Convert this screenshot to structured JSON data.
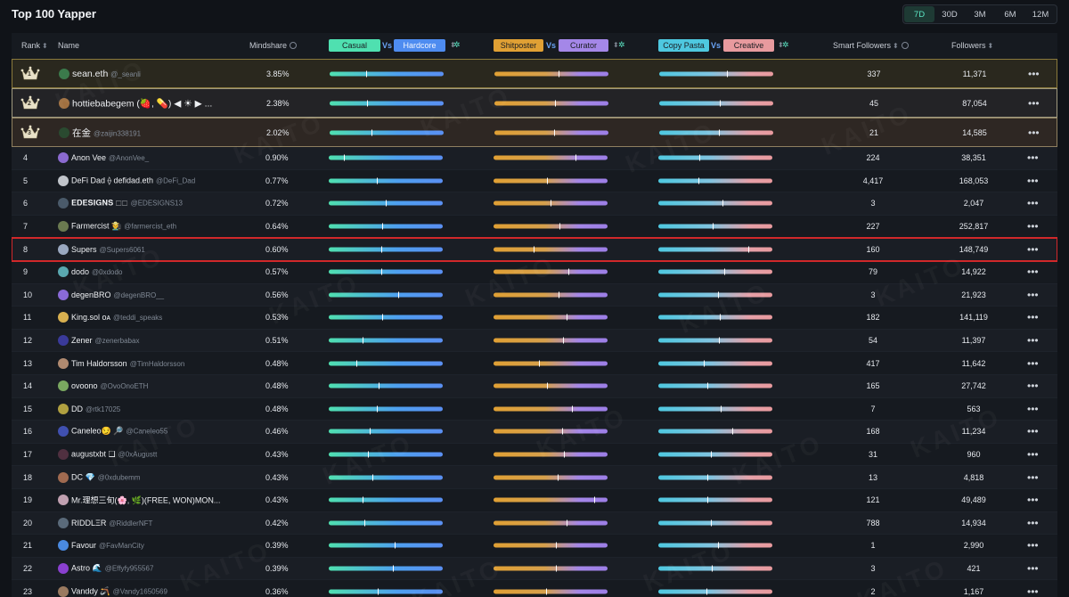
{
  "page": {
    "title": "Top 100 Yapper"
  },
  "range_tabs": [
    {
      "label": "7D",
      "active": true
    },
    {
      "label": "30D",
      "active": false
    },
    {
      "label": "3M",
      "active": false
    },
    {
      "label": "6M",
      "active": false
    },
    {
      "label": "12M",
      "active": false
    }
  ],
  "header": {
    "rank": "Rank",
    "name": "Name",
    "mindshare": "Mindshare",
    "casual": "Casual",
    "vs": "Vs",
    "hardcore": "Hardcore",
    "shitposter": "Shitposter",
    "curator": "Curator",
    "copy_pasta": "Copy Pasta",
    "creative": "Creative",
    "smart_followers": "Smart Followers",
    "followers": "Followers"
  },
  "watermark": "KAITO",
  "rows": [
    {
      "rank": "1",
      "crown": true,
      "name": "sean.eth",
      "handle": "@_seanli",
      "mindshare": "3.85%",
      "a": 0.32,
      "b": 0.56,
      "c": 0.59,
      "smart": "337",
      "followers": "11,371",
      "avatar": "#3b7a4b"
    },
    {
      "rank": "2",
      "crown": true,
      "name": "hottiebabegem (🍓, 💊) ◀ ☀ ▶ ...",
      "handle": "",
      "mindshare": "2.38%",
      "a": 0.33,
      "b": 0.53,
      "c": 0.53,
      "smart": "45",
      "followers": "87,054",
      "avatar": "#a07040"
    },
    {
      "rank": "3",
      "crown": true,
      "name": "在金",
      "handle": "@zaijin338191",
      "mindshare": "2.02%",
      "a": 0.37,
      "b": 0.52,
      "c": 0.52,
      "smart": "21",
      "followers": "14,585",
      "avatar": "#2a4a30"
    },
    {
      "rank": "4",
      "name": "Anon Vee",
      "handle": "@AnonVee_",
      "mindshare": "0.90%",
      "a": 0.13,
      "b": 0.72,
      "c": 0.36,
      "smart": "224",
      "followers": "38,351",
      "avatar": "#8b6ad0"
    },
    {
      "rank": "5",
      "name": "DeFi Dad ⟠ defidad.eth",
      "handle": "@DeFi_Dad",
      "mindshare": "0.77%",
      "a": 0.42,
      "b": 0.47,
      "c": 0.35,
      "smart": "4,417",
      "followers": "168,053",
      "avatar": "#c0c4ca"
    },
    {
      "rank": "6",
      "name": "𝐄𝐃𝐄𝐒𝐈𝐆𝐍𝐒 ⬚⬚",
      "handle": "@EDESIGNS13",
      "mindshare": "0.72%",
      "a": 0.5,
      "b": 0.5,
      "c": 0.56,
      "smart": "3",
      "followers": "2,047",
      "avatar": "#4a5a6a"
    },
    {
      "rank": "7",
      "name": "Farmercist 🧑‍🌾",
      "handle": "@farmercist_eth",
      "mindshare": "0.64%",
      "a": 0.47,
      "b": 0.58,
      "c": 0.48,
      "smart": "227",
      "followers": "252,817",
      "avatar": "#6a7a50"
    },
    {
      "rank": "8",
      "name": "Supers",
      "handle": "@Supers6061",
      "mindshare": "0.60%",
      "a": 0.46,
      "b": 0.35,
      "c": 0.79,
      "smart": "160",
      "followers": "148,749",
      "avatar": "#9aa8c0",
      "highlight": true
    },
    {
      "rank": "9",
      "name": "dodo",
      "handle": "@0xdodo",
      "mindshare": "0.57%",
      "a": 0.46,
      "b": 0.66,
      "c": 0.58,
      "smart": "79",
      "followers": "14,922",
      "avatar": "#5aa8b0"
    },
    {
      "rank": "10",
      "name": "degenBRO",
      "handle": "@degenBRO__",
      "mindshare": "0.56%",
      "a": 0.61,
      "b": 0.57,
      "c": 0.52,
      "smart": "3",
      "followers": "21,923",
      "avatar": "#8a6ad8"
    },
    {
      "rank": "11",
      "name": "King.sol ᴏᴀ",
      "handle": "@teddi_speaks",
      "mindshare": "0.53%",
      "a": 0.47,
      "b": 0.64,
      "c": 0.54,
      "smart": "182",
      "followers": "141,119",
      "avatar": "#d8b050"
    },
    {
      "rank": "12",
      "name": "Zener",
      "handle": "@zenerbabax",
      "mindshare": "0.51%",
      "a": 0.3,
      "b": 0.61,
      "c": 0.53,
      "smart": "54",
      "followers": "11,397",
      "avatar": "#3a3a9a"
    },
    {
      "rank": "13",
      "name": "Tim Haldorsson",
      "handle": "@TimHaldorsson",
      "mindshare": "0.48%",
      "a": 0.24,
      "b": 0.4,
      "c": 0.4,
      "smart": "417",
      "followers": "11,642",
      "avatar": "#b08a70"
    },
    {
      "rank": "14",
      "name": "ovoono",
      "handle": "@OvoOnoETH",
      "mindshare": "0.48%",
      "a": 0.44,
      "b": 0.47,
      "c": 0.43,
      "smart": "165",
      "followers": "27,742",
      "avatar": "#7aa860"
    },
    {
      "rank": "15",
      "name": "DD",
      "handle": "@rtk17025",
      "mindshare": "0.48%",
      "a": 0.42,
      "b": 0.69,
      "c": 0.55,
      "smart": "7",
      "followers": "563",
      "avatar": "#b0a040"
    },
    {
      "rank": "16",
      "name": "Caneleo😏 🔎",
      "handle": "@Caneleo55",
      "mindshare": "0.46%",
      "a": 0.36,
      "b": 0.6,
      "c": 0.65,
      "smart": "168",
      "followers": "11,234",
      "avatar": "#4050b0"
    },
    {
      "rank": "17",
      "name": "augustxbt ❏",
      "handle": "@0xAugustt",
      "mindshare": "0.43%",
      "a": 0.34,
      "b": 0.62,
      "c": 0.46,
      "smart": "31",
      "followers": "960",
      "avatar": "#503040"
    },
    {
      "rank": "18",
      "name": "DC 💎",
      "handle": "@0xdubemm",
      "mindshare": "0.43%",
      "a": 0.38,
      "b": 0.56,
      "c": 0.43,
      "smart": "13",
      "followers": "4,818",
      "avatar": "#a06a50"
    },
    {
      "rank": "19",
      "name": "Mr.理想三旬(🌸, 🌿)(FREE, WON)MON...",
      "handle": "",
      "mindshare": "0.43%",
      "a": 0.3,
      "b": 0.88,
      "c": 0.43,
      "smart": "121",
      "followers": "49,489",
      "avatar": "#c0a0b0"
    },
    {
      "rank": "20",
      "name": "RIDDLΞR",
      "handle": "@RiddlerNFT",
      "mindshare": "0.42%",
      "a": 0.31,
      "b": 0.64,
      "c": 0.46,
      "smart": "788",
      "followers": "14,934",
      "avatar": "#5a6a7a"
    },
    {
      "rank": "21",
      "name": "Favour",
      "handle": "@FavManCity",
      "mindshare": "0.39%",
      "a": 0.58,
      "b": 0.55,
      "c": 0.52,
      "smart": "1",
      "followers": "2,990",
      "avatar": "#4a8ae0"
    },
    {
      "rank": "22",
      "name": "Astro 🌊",
      "handle": "@Effyfy955567",
      "mindshare": "0.39%",
      "a": 0.56,
      "b": 0.55,
      "c": 0.47,
      "smart": "3",
      "followers": "421",
      "avatar": "#8a40d0"
    },
    {
      "rank": "23",
      "name": "Vanddy 🪃",
      "handle": "@Vandy1650569",
      "mindshare": "0.36%",
      "a": 0.43,
      "b": 0.46,
      "c": 0.42,
      "smart": "2",
      "followers": "1,167",
      "avatar": "#9a7a60"
    }
  ]
}
